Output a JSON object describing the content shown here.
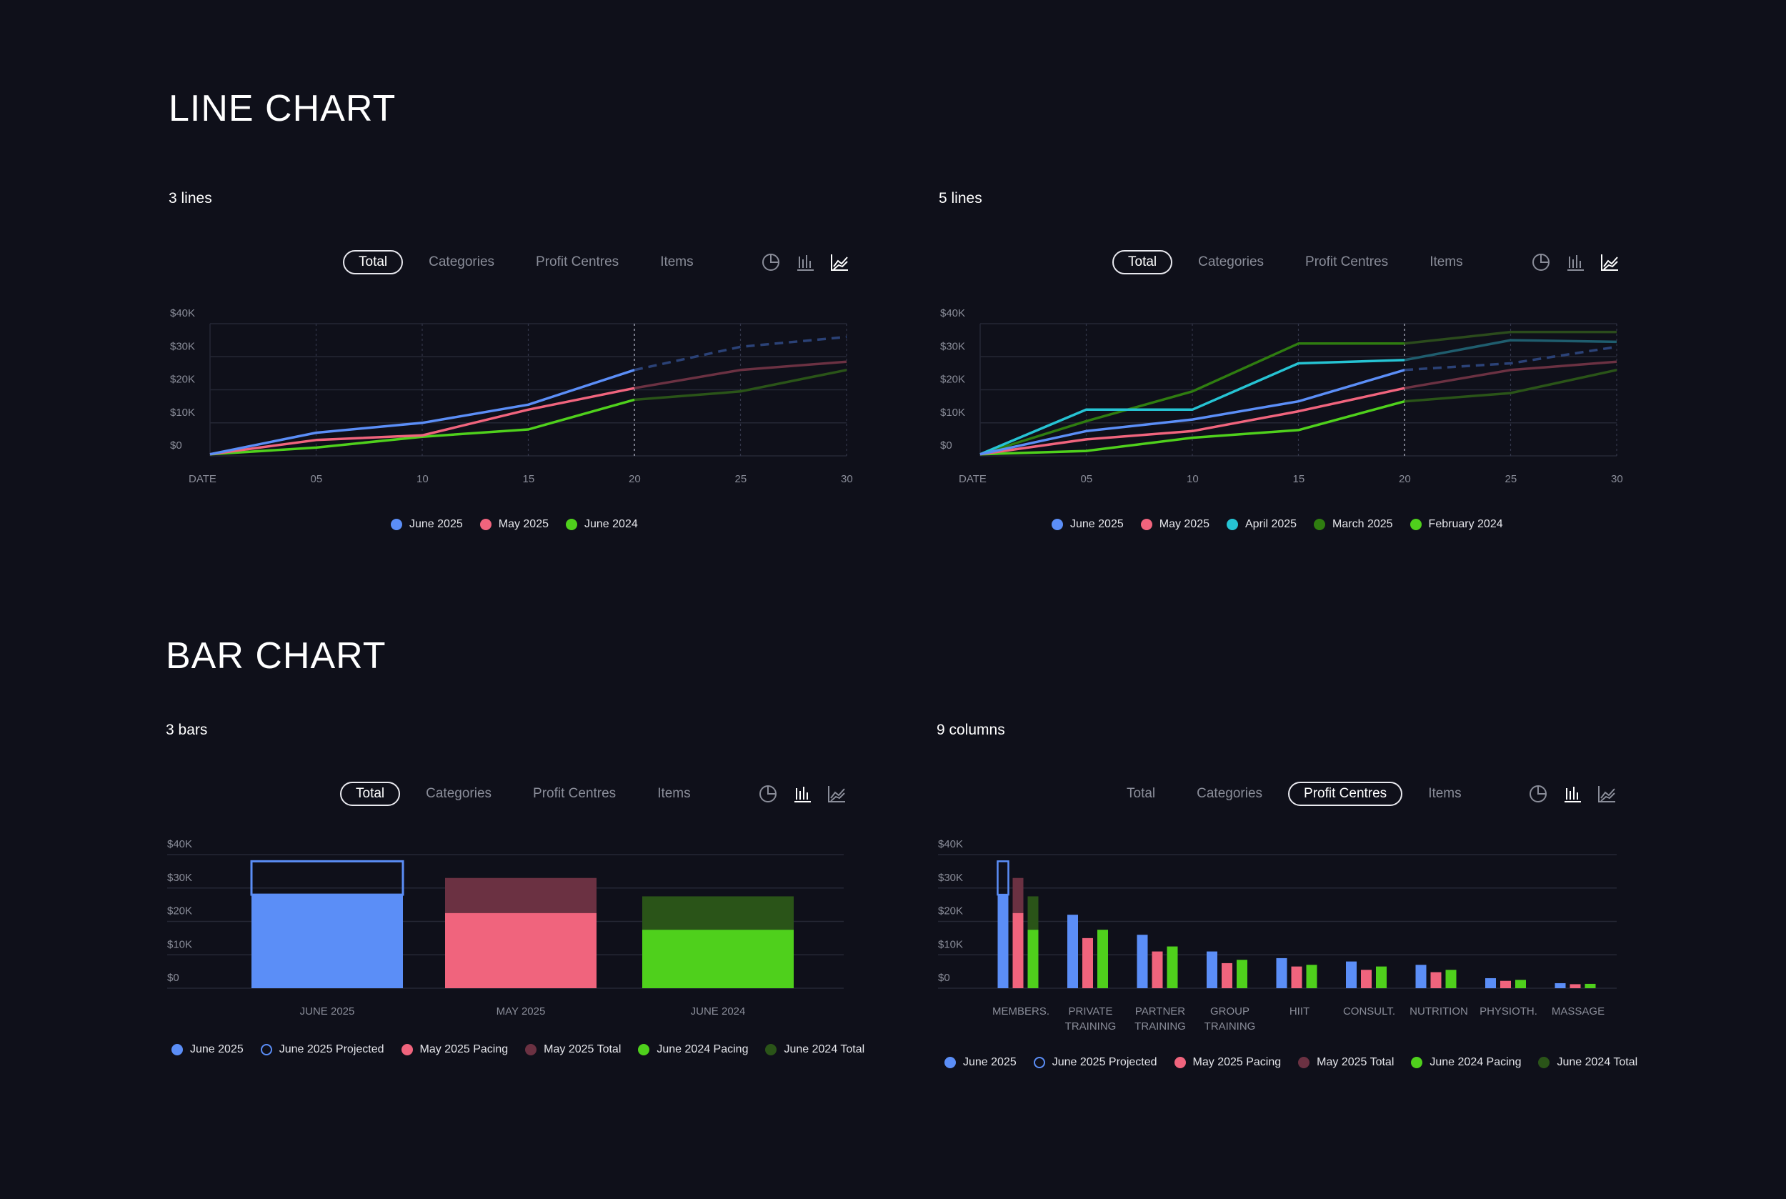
{
  "sections": {
    "line_title": "LINE CHART",
    "bar_title": "BAR CHART"
  },
  "charts": {
    "c1": {
      "title": "3 lines",
      "tabs": [
        "Total",
        "Categories",
        "Profit Centres",
        "Items"
      ],
      "active_tab": 0,
      "active_view": "line",
      "legend": [
        {
          "label": "June 2025",
          "color": "#5b8ef7",
          "style": "solid"
        },
        {
          "label": "May 2025",
          "color": "#f0647d",
          "style": "solid"
        },
        {
          "label": "June 2024",
          "color": "#4fd01c",
          "style": "solid"
        }
      ]
    },
    "c2": {
      "title": "5 lines",
      "tabs": [
        "Total",
        "Categories",
        "Profit Centres",
        "Items"
      ],
      "active_tab": 0,
      "active_view": "line",
      "legend": [
        {
          "label": "June 2025",
          "color": "#5b8ef7",
          "style": "solid"
        },
        {
          "label": "May 2025",
          "color": "#f0647d",
          "style": "solid"
        },
        {
          "label": "April 2025",
          "color": "#26c3d3",
          "style": "solid"
        },
        {
          "label": "March 2025",
          "color": "#2f7d10",
          "style": "solid"
        },
        {
          "label": "February 2024",
          "color": "#4fd01c",
          "style": "solid"
        }
      ]
    },
    "c3": {
      "title": "3 bars",
      "tabs": [
        "Total",
        "Categories",
        "Profit Centres",
        "Items"
      ],
      "active_tab": 0,
      "active_view": "bar",
      "legend": [
        {
          "label": "June 2025",
          "color": "#5b8ef7",
          "style": "solid"
        },
        {
          "label": "June 2025 Projected",
          "color": "#5b8ef7",
          "style": "outline"
        },
        {
          "label": "May 2025 Pacing",
          "color": "#f0647d",
          "style": "solid"
        },
        {
          "label": "May 2025 Total",
          "color": "#6b3142",
          "style": "solid"
        },
        {
          "label": "June 2024 Pacing",
          "color": "#4fd01c",
          "style": "solid"
        },
        {
          "label": "June 2024 Total",
          "color": "#2a5418",
          "style": "solid"
        }
      ]
    },
    "c4": {
      "title": "9 columns",
      "tabs": [
        "Total",
        "Categories",
        "Profit Centres",
        "Items"
      ],
      "active_tab": 2,
      "active_view": "bar",
      "legend": [
        {
          "label": "June 2025",
          "color": "#5b8ef7",
          "style": "solid"
        },
        {
          "label": "June 2025 Projected",
          "color": "#5b8ef7",
          "style": "outline"
        },
        {
          "label": "May 2025 Pacing",
          "color": "#f0647d",
          "style": "solid"
        },
        {
          "label": "May 2025 Total",
          "color": "#6b3142",
          "style": "solid"
        },
        {
          "label": "June 2024 Pacing",
          "color": "#4fd01c",
          "style": "solid"
        },
        {
          "label": "June 2024 Total",
          "color": "#2a5418",
          "style": "solid"
        }
      ]
    }
  },
  "colors": {
    "background": "#0f101a",
    "june2025": "#5b8ef7",
    "june2025_projected": "#2b4277",
    "may2025": "#f0647d",
    "may2025_faded": "#6b3142",
    "june2024": "#4fd01c",
    "june2024_faded": "#2a5418",
    "april2025": "#26c3d3",
    "april2025_faded": "#1f5d6e",
    "march2025": "#2f7d10",
    "grid": "#252735",
    "axis_text": "#8a8d99"
  },
  "icons": [
    "pie-chart-icon",
    "bar-chart-icon",
    "line-chart-icon"
  ],
  "chart_data": [
    {
      "type": "line",
      "y_ticks": [
        "$0",
        "$10K",
        "$20K",
        "$30K",
        "$40K"
      ],
      "ylim": [
        0,
        40000
      ],
      "x_ticks": [
        "DATE",
        "05",
        "10",
        "15",
        "20",
        "25",
        "30"
      ],
      "x_tick_values": [
        0,
        5,
        10,
        15,
        20,
        25,
        30
      ],
      "current_day": 20,
      "series": [
        {
          "name": "June 2025",
          "x": [
            0,
            5,
            10,
            15,
            20
          ],
          "y": [
            500,
            7000,
            10000,
            15500,
            26000
          ],
          "projected_x": [
            20,
            25,
            30
          ],
          "projected_y": [
            26000,
            33000,
            36000
          ]
        },
        {
          "name": "May 2025",
          "x": [
            0,
            5,
            10,
            15,
            20,
            25,
            30
          ],
          "y": [
            500,
            4800,
            6200,
            14000,
            20500,
            26000,
            28500
          ]
        },
        {
          "name": "June 2024",
          "x": [
            0,
            5,
            10,
            15,
            20,
            25,
            30
          ],
          "y": [
            500,
            2500,
            5800,
            8000,
            17000,
            19500,
            26000
          ]
        }
      ]
    },
    {
      "type": "line",
      "y_ticks": [
        "$0",
        "$10K",
        "$20K",
        "$30K",
        "$40K"
      ],
      "ylim": [
        0,
        40000
      ],
      "x_ticks": [
        "DATE",
        "05",
        "10",
        "15",
        "20",
        "25",
        "30"
      ],
      "x_tick_values": [
        0,
        5,
        10,
        15,
        20,
        25,
        30
      ],
      "current_day": 20,
      "series": [
        {
          "name": "June 2025",
          "x": [
            0,
            5,
            10,
            15,
            20
          ],
          "y": [
            500,
            7500,
            11000,
            16500,
            26000
          ],
          "projected_x": [
            20,
            25,
            30
          ],
          "projected_y": [
            26000,
            28000,
            33000
          ]
        },
        {
          "name": "May 2025",
          "x": [
            0,
            5,
            10,
            15,
            20,
            25,
            30
          ],
          "y": [
            500,
            5000,
            7500,
            13500,
            20500,
            26000,
            28500
          ]
        },
        {
          "name": "April 2025",
          "x": [
            0,
            5,
            10,
            15,
            20,
            25,
            30
          ],
          "y": [
            500,
            14000,
            14000,
            28000,
            29000,
            35000,
            34500
          ]
        },
        {
          "name": "March 2025",
          "x": [
            0,
            5,
            10,
            15,
            20,
            25,
            30
          ],
          "y": [
            500,
            10500,
            19500,
            34000,
            34000,
            37500,
            37500
          ]
        },
        {
          "name": "February 2024",
          "x": [
            0,
            5,
            10,
            15,
            20,
            25,
            30
          ],
          "y": [
            500,
            1500,
            5500,
            7800,
            16500,
            19000,
            26000
          ]
        }
      ]
    },
    {
      "type": "bar",
      "y_ticks": [
        "$0",
        "$10K",
        "$20K",
        "$30K",
        "$40K"
      ],
      "ylim": [
        0,
        40000
      ],
      "categories": [
        "JUNE 2025"
      ],
      "bars": [
        {
          "category": "JUNE 2025",
          "value": 28000,
          "total": 38000,
          "series": "June 2025"
        },
        {
          "category": "MAY 2025",
          "value": 22500,
          "total": 33000,
          "series": "May 2025"
        },
        {
          "category": "JUNE 2024",
          "value": 17500,
          "total": 27500,
          "series": "June 2024"
        }
      ]
    },
    {
      "type": "bar",
      "y_ticks": [
        "$0",
        "$10K",
        "$20K",
        "$30K",
        "$40K"
      ],
      "ylim": [
        0,
        40000
      ],
      "categories": [
        [
          "MEMBERS."
        ],
        [
          "PRIVATE",
          "TRAINING"
        ],
        [
          "PARTNER",
          "TRAINING"
        ],
        [
          "GROUP",
          "TRAINING"
        ],
        [
          "HIIT"
        ],
        [
          "CONSULT."
        ],
        [
          "NUTRITION"
        ],
        [
          "PHYSIOTH."
        ],
        [
          "MASSAGE"
        ]
      ],
      "june2025": [
        28000,
        22000,
        16000,
        11000,
        9000,
        8000,
        7000,
        3000,
        1500
      ],
      "june2025_projected": [
        38000,
        null,
        null,
        null,
        null,
        null,
        null,
        null,
        null
      ],
      "may2025_pacing": [
        22500,
        15000,
        11000,
        7500,
        6500,
        5500,
        4800,
        2200,
        1200
      ],
      "may2025_total": [
        33000,
        null,
        null,
        null,
        null,
        null,
        null,
        null,
        null
      ],
      "june2024_pacing": [
        17500,
        17500,
        12500,
        8500,
        7000,
        6500,
        5500,
        2500,
        1300
      ],
      "june2024_total": [
        27500,
        null,
        null,
        null,
        null,
        null,
        null,
        null,
        null
      ]
    }
  ]
}
